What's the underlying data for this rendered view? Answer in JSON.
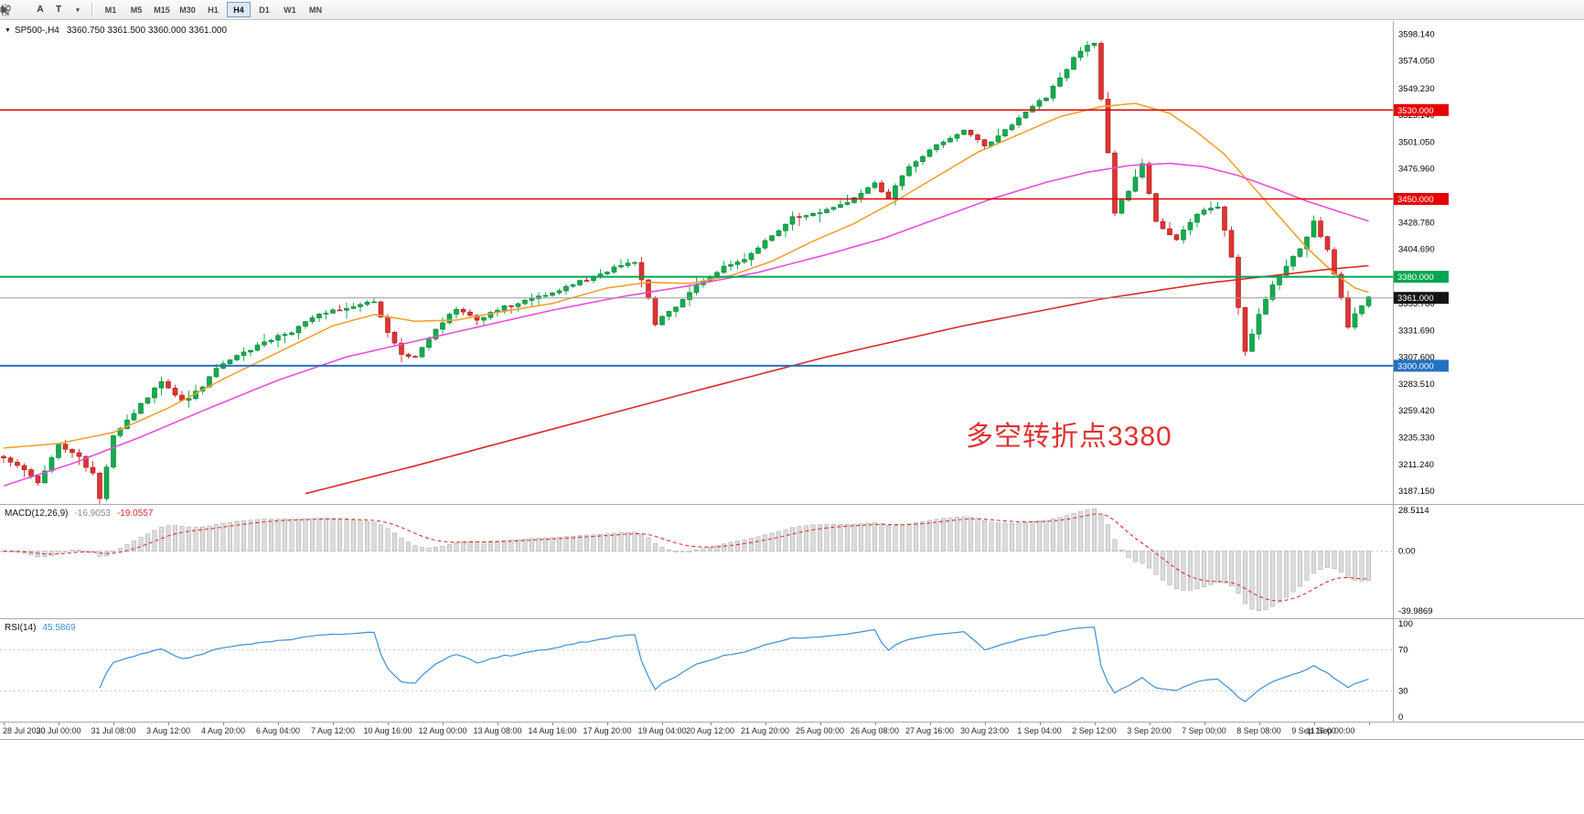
{
  "toolbar": {
    "tools": [
      {
        "label": "A"
      },
      {
        "label": "T"
      }
    ],
    "caret": "▾",
    "timeframes": [
      {
        "label": "M1",
        "active": false
      },
      {
        "label": "M5",
        "active": false
      },
      {
        "label": "M15",
        "active": false
      },
      {
        "label": "M30",
        "active": false
      },
      {
        "label": "H1",
        "active": false
      },
      {
        "label": "H4",
        "active": true
      },
      {
        "label": "D1",
        "active": false
      },
      {
        "label": "W1",
        "active": false
      },
      {
        "label": "MN",
        "active": false
      }
    ]
  },
  "main": {
    "menu_caret": "▼",
    "symbol_period": "SP500-,H4",
    "ohlc": "3360.750 3361.500 3360.000 3361.000",
    "annotation": {
      "text": "多空转折点3380",
      "color": "#e03131"
    }
  },
  "chart_data": {
    "type": "candlestick",
    "symbol": "SP500-",
    "period": "H4",
    "bars": 200,
    "colors": {
      "up": "#10ae4d",
      "up_border": "#077a33",
      "down": "#e03333",
      "down_border": "#9d1d1d",
      "ma_fast": "#f0a132",
      "ma_mid": "#e84fd7",
      "ma_slow": "#d92b2b",
      "macd_hist_fill": "#dcdcdc",
      "macd_hist_stroke": "#a8a8a8",
      "macd_signal": "#e03030",
      "rsi": "#3f8fd6",
      "price_line": "#999999",
      "current_tag_bg": "#141414"
    },
    "main": {
      "ylim": [
        3175.7,
        3610
      ],
      "noise_seed": 9,
      "close_anchors": [
        [
          0,
          3218
        ],
        [
          3,
          3206
        ],
        [
          5,
          3196
        ],
        [
          8,
          3228
        ],
        [
          11,
          3218
        ],
        [
          13,
          3202
        ],
        [
          14,
          3180
        ],
        [
          16,
          3236
        ],
        [
          19,
          3258
        ],
        [
          23,
          3286
        ],
        [
          26,
          3268
        ],
        [
          29,
          3280
        ],
        [
          31,
          3298
        ],
        [
          34,
          3308
        ],
        [
          38,
          3322
        ],
        [
          42,
          3331
        ],
        [
          46,
          3346
        ],
        [
          50,
          3352
        ],
        [
          54,
          3358
        ],
        [
          56,
          3330
        ],
        [
          58,
          3310
        ],
        [
          60,
          3307
        ],
        [
          63,
          3333
        ],
        [
          66,
          3352
        ],
        [
          69,
          3341
        ],
        [
          73,
          3353
        ],
        [
          77,
          3359
        ],
        [
          81,
          3368
        ],
        [
          85,
          3378
        ],
        [
          89,
          3388
        ],
        [
          92,
          3393
        ],
        [
          94,
          3360
        ],
        [
          95,
          3338
        ],
        [
          98,
          3353
        ],
        [
          101,
          3373
        ],
        [
          105,
          3389
        ],
        [
          108,
          3397
        ],
        [
          112,
          3416
        ],
        [
          115,
          3433
        ],
        [
          119,
          3439
        ],
        [
          123,
          3447
        ],
        [
          127,
          3463
        ],
        [
          129,
          3452
        ],
        [
          131,
          3472
        ],
        [
          134,
          3489
        ],
        [
          137,
          3502
        ],
        [
          140,
          3513
        ],
        [
          143,
          3498
        ],
        [
          146,
          3511
        ],
        [
          149,
          3528
        ],
        [
          152,
          3542
        ],
        [
          155,
          3568
        ],
        [
          157,
          3584
        ],
        [
          159,
          3591
        ],
        [
          160,
          3540
        ],
        [
          161,
          3490
        ],
        [
          162,
          3438
        ],
        [
          164,
          3458
        ],
        [
          166,
          3481
        ],
        [
          168,
          3430
        ],
        [
          171,
          3412
        ],
        [
          173,
          3430
        ],
        [
          175,
          3441
        ],
        [
          177,
          3443
        ],
        [
          179,
          3398
        ],
        [
          180,
          3352
        ],
        [
          181,
          3313
        ],
        [
          183,
          3346
        ],
        [
          185,
          3373
        ],
        [
          187,
          3390
        ],
        [
          189,
          3405
        ],
        [
          191,
          3429
        ],
        [
          193,
          3404
        ],
        [
          195,
          3362
        ],
        [
          196,
          3334
        ],
        [
          197,
          3348
        ],
        [
          198,
          3354
        ],
        [
          199,
          3361
        ]
      ]
    },
    "ma_lines": [
      {
        "name": "fast-orange",
        "color": "#f0a132",
        "anchors": [
          [
            0,
            3226
          ],
          [
            8,
            3230
          ],
          [
            16,
            3240
          ],
          [
            24,
            3262
          ],
          [
            32,
            3288
          ],
          [
            40,
            3312
          ],
          [
            48,
            3336
          ],
          [
            54,
            3346
          ],
          [
            60,
            3340
          ],
          [
            66,
            3341
          ],
          [
            72,
            3348
          ],
          [
            80,
            3356
          ],
          [
            88,
            3370
          ],
          [
            94,
            3375
          ],
          [
            100,
            3374
          ],
          [
            106,
            3381
          ],
          [
            112,
            3394
          ],
          [
            118,
            3412
          ],
          [
            124,
            3428
          ],
          [
            130,
            3448
          ],
          [
            136,
            3470
          ],
          [
            142,
            3492
          ],
          [
            148,
            3508
          ],
          [
            154,
            3524
          ],
          [
            160,
            3533
          ],
          [
            165,
            3536
          ],
          [
            170,
            3527
          ],
          [
            174,
            3510
          ],
          [
            178,
            3490
          ],
          [
            182,
            3462
          ],
          [
            186,
            3434
          ],
          [
            190,
            3406
          ],
          [
            194,
            3383
          ],
          [
            197,
            3370
          ],
          [
            199,
            3366
          ]
        ]
      },
      {
        "name": "mid-magenta",
        "color": "#e84fd7",
        "anchors": [
          [
            0,
            3192
          ],
          [
            10,
            3212
          ],
          [
            20,
            3236
          ],
          [
            30,
            3262
          ],
          [
            40,
            3287
          ],
          [
            50,
            3308
          ],
          [
            60,
            3322
          ],
          [
            70,
            3336
          ],
          [
            80,
            3350
          ],
          [
            90,
            3362
          ],
          [
            100,
            3372
          ],
          [
            110,
            3384
          ],
          [
            120,
            3400
          ],
          [
            128,
            3414
          ],
          [
            136,
            3432
          ],
          [
            144,
            3450
          ],
          [
            152,
            3465
          ],
          [
            158,
            3474
          ],
          [
            164,
            3480
          ],
          [
            170,
            3482
          ],
          [
            175,
            3479
          ],
          [
            180,
            3471
          ],
          [
            185,
            3460
          ],
          [
            190,
            3448
          ],
          [
            195,
            3438
          ],
          [
            199,
            3430
          ]
        ]
      },
      {
        "name": "slow-red",
        "color": "#d92b2b",
        "anchors": [
          [
            44,
            3185
          ],
          [
            60,
            3210
          ],
          [
            80,
            3243
          ],
          [
            100,
            3276
          ],
          [
            120,
            3308
          ],
          [
            140,
            3336
          ],
          [
            160,
            3360
          ],
          [
            175,
            3374
          ],
          [
            185,
            3381
          ],
          [
            192,
            3386
          ],
          [
            199,
            3390
          ]
        ]
      }
    ],
    "hlines": [
      {
        "price": 3530,
        "label": "3530.000",
        "color": "#e60000",
        "width": 1.5
      },
      {
        "price": 3450,
        "label": "3450.000",
        "color": "#e60000",
        "width": 1.5
      },
      {
        "price": 3380,
        "label": "3380.000",
        "color": "#00a651",
        "width": 2
      },
      {
        "price": 3300,
        "label": "3300.000",
        "color": "#2470c2",
        "width": 2
      }
    ],
    "current": {
      "price": 3361,
      "label": "3361.000"
    },
    "price_axis_labels": [
      "3598.140",
      "3574.050",
      "3549.230",
      "3525.140",
      "3501.050",
      "3476.960",
      "3428.780",
      "3404.690",
      "3355.780",
      "3331.690",
      "3307.600",
      "3283.510",
      "3259.420",
      "3235.330",
      "3211.240",
      "3187.150"
    ],
    "macd": {
      "header_name": "MACD(12,26,9)",
      "value_main": "-16.9053",
      "value_signal": "-19.0557",
      "params": {
        "fast": 12,
        "slow": 26,
        "signal": 9
      },
      "ylim": [
        -45,
        31
      ],
      "rescale_max": 28.5114,
      "rescale_min": -39.9869,
      "axis_labels": [
        {
          "text": "28.5114",
          "value": 28.5114
        },
        {
          "text": "0.00",
          "value": 0
        },
        {
          "text": "-39.9869",
          "value": -39.9869
        }
      ]
    },
    "rsi": {
      "header_name": "RSI(14)",
      "value": "45.5869",
      "period": 14,
      "ylim": [
        0,
        100
      ],
      "levels": [
        70,
        30
      ],
      "axis_labels": [
        "100",
        "70",
        "30",
        "0"
      ]
    },
    "time_axis": {
      "labels": [
        "28 Jul 2020",
        "30 Jul 00:00",
        "31 Jul 08:00",
        "3 Aug 12:00",
        "4 Aug 20:00",
        "6 Aug 04:00",
        "7 Aug 12:00",
        "10 Aug 16:00",
        "12 Aug 00:00",
        "13 Aug 08:00",
        "14 Aug 16:00",
        "17 Aug 20:00",
        "19 Aug 04:00",
        "20 Aug 12:00",
        "21 Aug 20:00",
        "25 Aug 00:00",
        "26 Aug 08:00",
        "27 Aug 16:00",
        "30 Aug 23:00",
        "1 Sep 04:00",
        "2 Sep 12:00",
        "3 Sep 20:00",
        "7 Sep 00:00",
        "8 Sep 08:00",
        "9 Sep 16:00",
        "11 Sep 00:00"
      ],
      "indices": [
        0,
        8,
        16,
        24,
        32,
        40,
        48,
        56,
        64,
        72,
        80,
        88,
        96,
        103,
        111,
        119,
        127,
        135,
        143,
        151,
        159,
        167,
        175,
        183,
        191,
        199
      ]
    }
  }
}
